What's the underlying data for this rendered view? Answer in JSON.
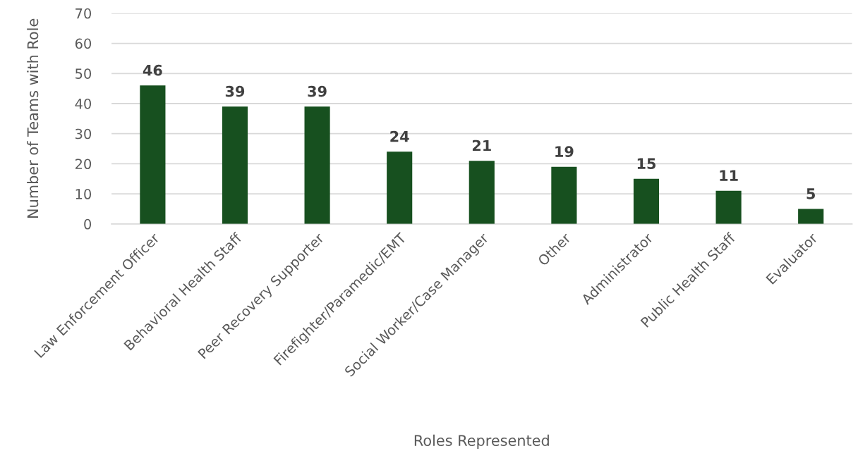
{
  "chart_data": {
    "type": "bar",
    "xlabel": "Roles Represented",
    "ylabel": "Number of Teams with Role",
    "categories": [
      "Law Enforcement Officer",
      "Behavioral Health Staff",
      "Peer Recovery Supporter",
      "Firefighter/Paramedic/EMT",
      "Social Worker/Case Manager",
      "Other",
      "Administrator",
      "Public Health Staff",
      "Evaluator"
    ],
    "values": [
      46,
      39,
      39,
      24,
      21,
      19,
      15,
      11,
      5
    ],
    "color": "#17501f",
    "ylim": [
      0,
      70
    ],
    "yticks": [
      0,
      10,
      20,
      30,
      40,
      50,
      60,
      70
    ],
    "grid": "y",
    "data_labels": true
  }
}
